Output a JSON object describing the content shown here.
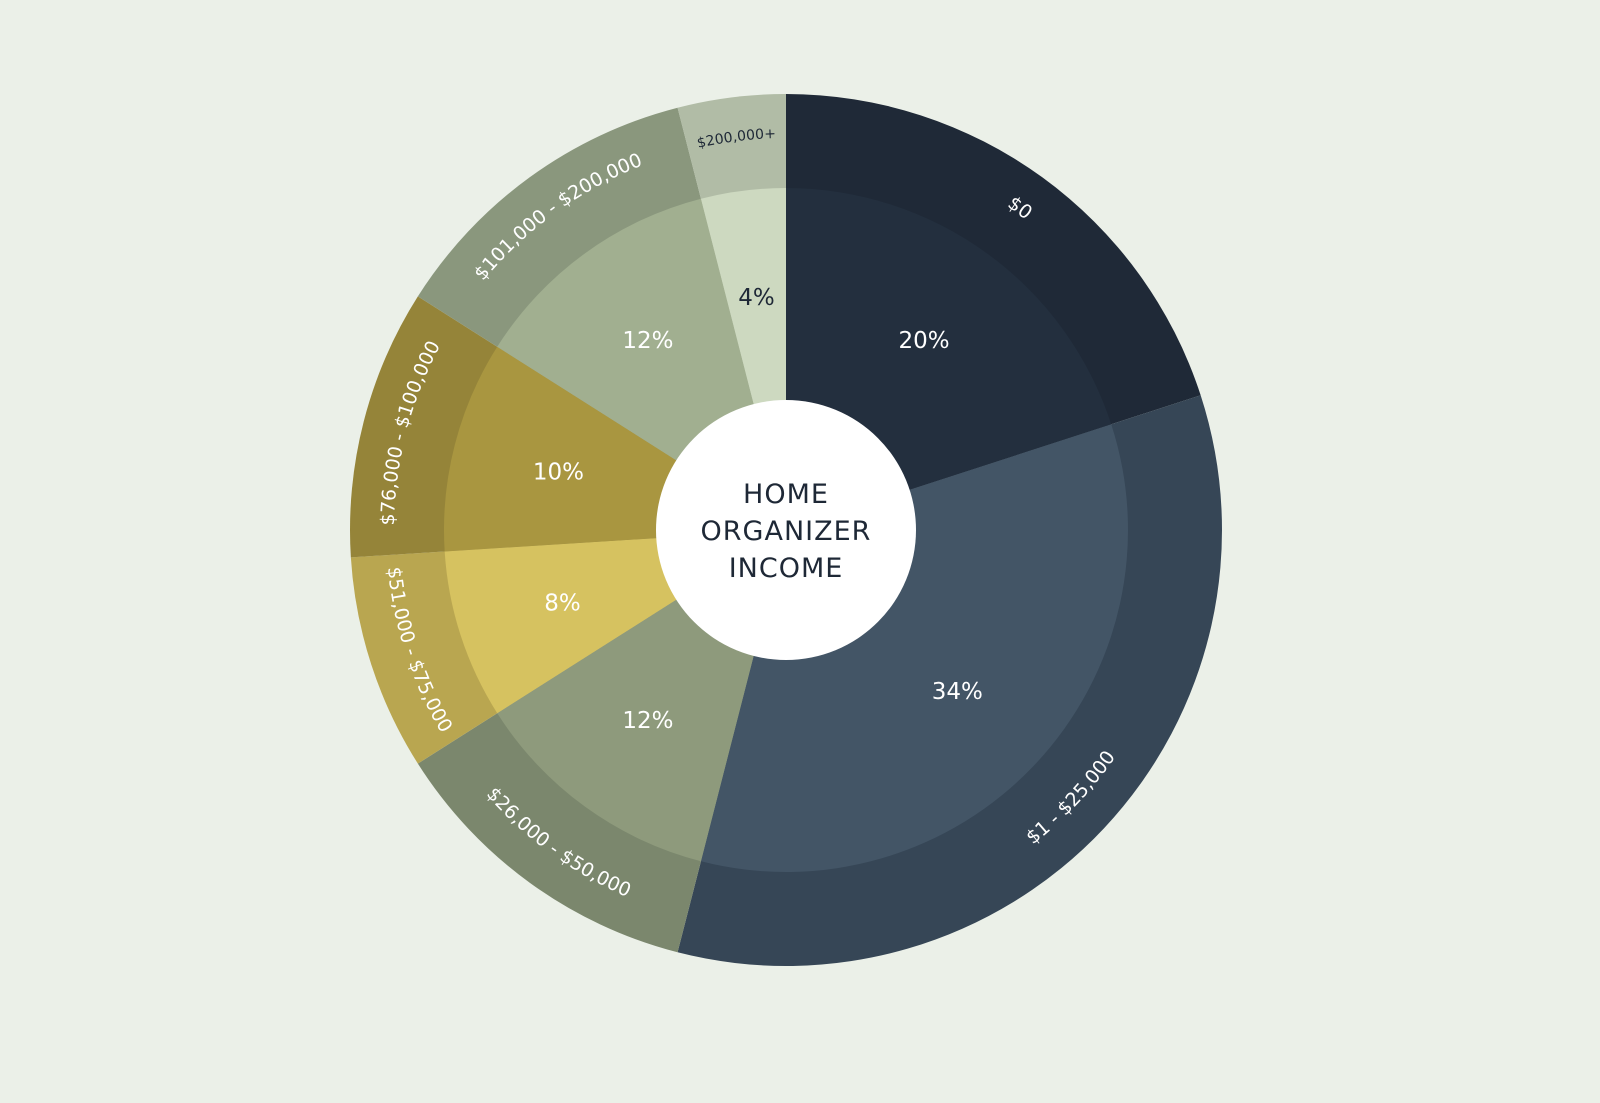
{
  "chart_data": {
    "type": "pie",
    "title_lines": [
      "HOME",
      "ORGANIZER",
      "INCOME"
    ],
    "slices": [
      {
        "label": "$0",
        "value": 20,
        "value_label": "20%",
        "outer_color": "#1f2937",
        "inner_color": "#232f3e",
        "text_color": "#ffffff"
      },
      {
        "label": "$1 - $25,000",
        "value": 34,
        "value_label": "34%",
        "outer_color": "#364656",
        "inner_color": "#435566",
        "text_color": "#ffffff"
      },
      {
        "label": "$26,000 - $50,000",
        "value": 12,
        "value_label": "12%",
        "outer_color": "#7b876d",
        "inner_color": "#8e9a7c",
        "text_color": "#ffffff"
      },
      {
        "label": "$51,000 - $75,000",
        "value": 8,
        "value_label": "8%",
        "outer_color": "#b9a650",
        "inner_color": "#d6c260",
        "text_color": "#ffffff"
      },
      {
        "label": "$76,000 - $100,000",
        "value": 10,
        "value_label": "10%",
        "outer_color": "#958439",
        "inner_color": "#a99640",
        "text_color": "#ffffff"
      },
      {
        "label": "$101,000 - $200,000",
        "value": 12,
        "value_label": "12%",
        "outer_color": "#8a977d",
        "inner_color": "#a1af90",
        "text_color": "#ffffff"
      },
      {
        "label": "$200,000+",
        "value": 4,
        "value_label": "4%",
        "outer_color": "#b1bca6",
        "inner_color": "#cdd9c0",
        "text_color": "#1e2836"
      }
    ],
    "center_color": "#ffffff",
    "legend": "none"
  }
}
